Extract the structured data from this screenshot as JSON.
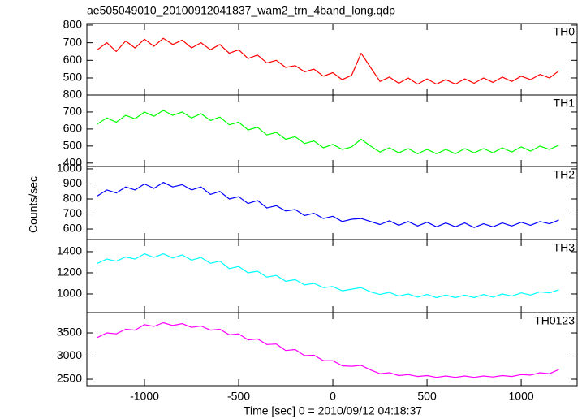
{
  "chart_data": [
    {
      "type": "line",
      "title": "ae505049010_20100912041837_wam2_trn_4band_long.qdp",
      "xlim": [
        -1306,
        1297
      ],
      "xticks": [
        -1000,
        -500,
        0,
        500,
        1000
      ],
      "ylim": [
        403,
        809
      ],
      "yticks": [
        500,
        600,
        700,
        800
      ],
      "x": [
        -1250,
        -1200,
        -1150,
        -1100,
        -1050,
        -1000,
        -950,
        -900,
        -850,
        -800,
        -750,
        -700,
        -650,
        -600,
        -550,
        -500,
        -450,
        -400,
        -350,
        -300,
        -250,
        -200,
        -150,
        -100,
        -50,
        0,
        50,
        100,
        150,
        200,
        250,
        300,
        350,
        400,
        450,
        500,
        550,
        600,
        650,
        700,
        750,
        800,
        850,
        900,
        950,
        1000,
        1050,
        1100,
        1150,
        1200
      ],
      "series": [
        {
          "name": "TH0",
          "color": "#ff0000",
          "values": [
            660,
            700,
            650,
            710,
            670,
            720,
            680,
            725,
            690,
            715,
            670,
            700,
            660,
            690,
            640,
            660,
            610,
            630,
            585,
            600,
            560,
            570,
            535,
            550,
            510,
            530,
            490,
            515,
            640,
            560,
            480,
            505,
            470,
            500,
            465,
            495,
            465,
            490,
            465,
            495,
            470,
            500,
            475,
            505,
            480,
            510,
            490,
            520,
            500,
            540
          ]
        }
      ]
    },
    {
      "type": "line",
      "xlim": [
        -1306,
        1297
      ],
      "xticks": [
        -1000,
        -500,
        0,
        500,
        1000
      ],
      "ylim": [
        380,
        800
      ],
      "yticks": [
        400,
        500,
        600,
        700,
        800
      ],
      "x": [
        -1250,
        -1200,
        -1150,
        -1100,
        -1050,
        -1000,
        -950,
        -900,
        -850,
        -800,
        -750,
        -700,
        -650,
        -600,
        -550,
        -500,
        -450,
        -400,
        -350,
        -300,
        -250,
        -200,
        -150,
        -100,
        -50,
        0,
        50,
        100,
        150,
        200,
        250,
        300,
        350,
        400,
        450,
        500,
        550,
        600,
        650,
        700,
        750,
        800,
        850,
        900,
        950,
        1000,
        1050,
        1100,
        1150,
        1200
      ],
      "series": [
        {
          "name": "TH1",
          "color": "#00ff00",
          "values": [
            630,
            665,
            640,
            680,
            660,
            700,
            675,
            710,
            680,
            700,
            665,
            690,
            650,
            670,
            625,
            640,
            595,
            610,
            565,
            580,
            540,
            555,
            515,
            530,
            490,
            510,
            480,
            495,
            540,
            500,
            465,
            490,
            460,
            485,
            455,
            480,
            455,
            480,
            455,
            485,
            460,
            485,
            460,
            490,
            465,
            495,
            470,
            500,
            480,
            505
          ]
        }
      ]
    },
    {
      "type": "line",
      "ylabel": "Counts/sec",
      "xlim": [
        -1306,
        1297
      ],
      "xticks": [
        -1000,
        -500,
        0,
        500,
        1000
      ],
      "ylim": [
        530,
        1016
      ],
      "yticks": [
        600,
        700,
        800,
        900,
        1000
      ],
      "x": [
        -1250,
        -1200,
        -1150,
        -1100,
        -1050,
        -1000,
        -950,
        -900,
        -850,
        -800,
        -750,
        -700,
        -650,
        -600,
        -550,
        -500,
        -450,
        -400,
        -350,
        -300,
        -250,
        -200,
        -150,
        -100,
        -50,
        0,
        50,
        100,
        150,
        200,
        250,
        300,
        350,
        400,
        450,
        500,
        550,
        600,
        650,
        700,
        750,
        800,
        850,
        900,
        950,
        1000,
        1050,
        1100,
        1150,
        1200
      ],
      "series": [
        {
          "name": "TH2",
          "color": "#0000ff",
          "values": [
            820,
            860,
            840,
            880,
            860,
            900,
            870,
            910,
            880,
            895,
            860,
            880,
            830,
            850,
            800,
            815,
            770,
            790,
            740,
            755,
            720,
            730,
            690,
            705,
            670,
            685,
            650,
            665,
            670,
            650,
            630,
            655,
            625,
            650,
            620,
            645,
            615,
            640,
            615,
            640,
            610,
            635,
            615,
            640,
            620,
            645,
            625,
            650,
            635,
            660
          ]
        }
      ]
    },
    {
      "type": "line",
      "xlim": [
        -1306,
        1297
      ],
      "xticks": [
        -1000,
        -500,
        0,
        500,
        1000
      ],
      "ylim": [
        823,
        1515
      ],
      "yticks": [
        1000,
        1200,
        1400
      ],
      "x": [
        -1250,
        -1200,
        -1150,
        -1100,
        -1050,
        -1000,
        -950,
        -900,
        -850,
        -800,
        -750,
        -700,
        -650,
        -600,
        -550,
        -500,
        -450,
        -400,
        -350,
        -300,
        -250,
        -200,
        -150,
        -100,
        -50,
        0,
        50,
        100,
        150,
        200,
        250,
        300,
        350,
        400,
        450,
        500,
        550,
        600,
        650,
        700,
        750,
        800,
        850,
        900,
        950,
        1000,
        1050,
        1100,
        1150,
        1200
      ],
      "series": [
        {
          "name": "TH3",
          "color": "#00ffff",
          "values": [
            1290,
            1330,
            1310,
            1350,
            1330,
            1380,
            1345,
            1380,
            1340,
            1370,
            1320,
            1345,
            1290,
            1310,
            1240,
            1260,
            1200,
            1215,
            1160,
            1175,
            1120,
            1135,
            1085,
            1100,
            1060,
            1070,
            1030,
            1045,
            1060,
            1020,
            995,
            1015,
            980,
            1000,
            970,
            995,
            965,
            990,
            965,
            990,
            965,
            995,
            970,
            1000,
            980,
            1010,
            990,
            1020,
            1010,
            1040
          ]
        }
      ]
    },
    {
      "type": "line",
      "xlabel": "Time [sec] 0 = 2010/09/12 04:18:37",
      "xlim": [
        -1306,
        1297
      ],
      "xticks": [
        -1000,
        -500,
        0,
        500,
        1000
      ],
      "ylim": [
        2360,
        3939
      ],
      "yticks": [
        2500,
        3000,
        3500
      ],
      "x": [
        -1250,
        -1200,
        -1150,
        -1100,
        -1050,
        -1000,
        -950,
        -900,
        -850,
        -800,
        -750,
        -700,
        -650,
        -600,
        -550,
        -500,
        -450,
        -400,
        -350,
        -300,
        -250,
        -200,
        -150,
        -100,
        -50,
        0,
        50,
        100,
        150,
        200,
        250,
        300,
        350,
        400,
        450,
        500,
        550,
        600,
        650,
        700,
        750,
        800,
        850,
        900,
        950,
        1000,
        1050,
        1100,
        1150,
        1200
      ],
      "series": [
        {
          "name": "TH0123",
          "color": "#ff00ff",
          "values": [
            3400,
            3500,
            3480,
            3580,
            3560,
            3680,
            3640,
            3720,
            3660,
            3700,
            3620,
            3650,
            3560,
            3580,
            3460,
            3480,
            3350,
            3370,
            3250,
            3260,
            3120,
            3140,
            3010,
            3020,
            2900,
            2900,
            2790,
            2780,
            2800,
            2700,
            2620,
            2640,
            2580,
            2600,
            2560,
            2580,
            2540,
            2570,
            2540,
            2570,
            2540,
            2570,
            2550,
            2580,
            2560,
            2600,
            2590,
            2640,
            2620,
            2710
          ]
        }
      ]
    }
  ]
}
